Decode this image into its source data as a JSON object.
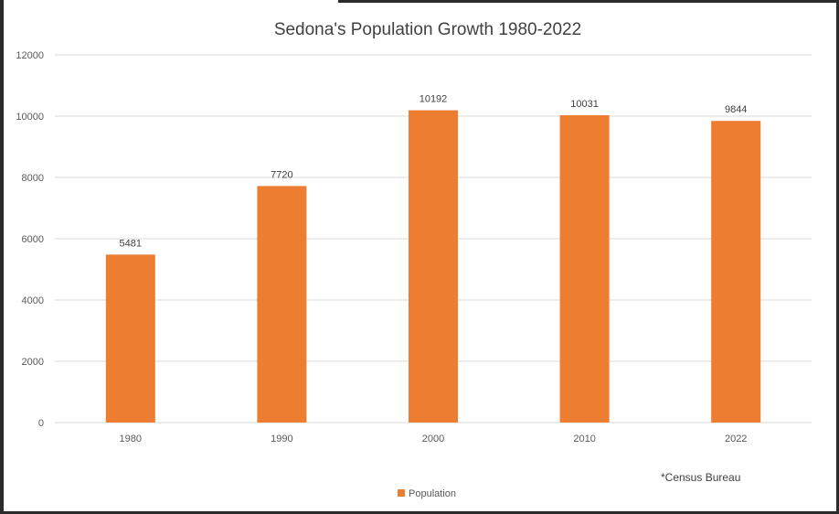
{
  "chart_data": {
    "type": "bar",
    "title": "Sedona's Population Growth 1980-2022",
    "categories": [
      "1980",
      "1990",
      "2000",
      "2010",
      "2022"
    ],
    "series": [
      {
        "name": "Population",
        "values": [
          5481,
          7720,
          10192,
          10031,
          9844
        ]
      }
    ],
    "ylim": [
      0,
      12000
    ],
    "y_ticks": [
      "0",
      "2000",
      "4000",
      "6000",
      "8000",
      "10000",
      "12000"
    ],
    "grid": true,
    "legend_position": "bottom",
    "data_labels": true,
    "note": "*Census Bureau",
    "colors": {
      "bar": "#ed7d31",
      "grid": "#d9d9d9"
    }
  }
}
